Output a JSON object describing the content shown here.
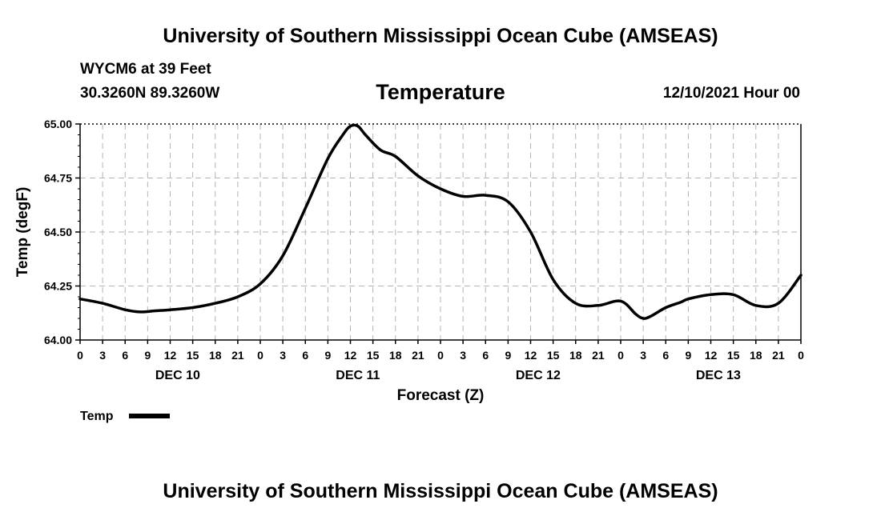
{
  "header": {
    "title": "University of Southern Mississippi Ocean Cube (AMSEAS)",
    "station": "WYCM6 at 39 Feet",
    "coords": "30.3260N  89.3260W",
    "variable": "Temperature",
    "date": "12/10/2021 Hour 00"
  },
  "footer": {
    "title": "University of Southern Mississippi Ocean Cube (AMSEAS)"
  },
  "chart_data": {
    "type": "line",
    "title": "Temperature",
    "xlabel": "Forecast (Z)",
    "ylabel": "Temp (degF)",
    "xlim": [
      0,
      96
    ],
    "ylim": [
      64.0,
      65.0
    ],
    "yticks": [
      "64.00",
      "64.25",
      "64.50",
      "64.75",
      "65.00"
    ],
    "xtick_labels": [
      "0",
      "3",
      "6",
      "9",
      "12",
      "15",
      "18",
      "21",
      "0",
      "3",
      "6",
      "9",
      "12",
      "15",
      "18",
      "21",
      "0",
      "3",
      "6",
      "9",
      "12",
      "15",
      "18",
      "21",
      "0",
      "3",
      "6",
      "9",
      "12",
      "15",
      "18",
      "21",
      "0"
    ],
    "day_labels": [
      "DEC 10",
      "DEC 11",
      "DEC 12",
      "DEC 13"
    ],
    "grid": true,
    "legend": "bottom-left",
    "series": [
      {
        "name": "Temp",
        "x": [
          0,
          3,
          6,
          8,
          10,
          12,
          15,
          18,
          21,
          24,
          27,
          30,
          33,
          35,
          36,
          37,
          38,
          40,
          42,
          45,
          48,
          51,
          54,
          57,
          60,
          63,
          66,
          69,
          72,
          74,
          75,
          76,
          78,
          80,
          81,
          84,
          87,
          90,
          93,
          96
        ],
        "y": [
          64.19,
          64.17,
          64.14,
          64.13,
          64.135,
          64.14,
          64.15,
          64.17,
          64.2,
          64.26,
          64.39,
          64.61,
          64.84,
          64.95,
          64.99,
          64.99,
          64.95,
          64.88,
          64.85,
          64.76,
          64.7,
          64.665,
          64.67,
          64.64,
          64.5,
          64.28,
          64.17,
          64.16,
          64.18,
          64.12,
          64.1,
          64.11,
          64.15,
          64.175,
          64.19,
          64.21,
          64.21,
          64.16,
          64.17,
          64.3
        ]
      }
    ]
  }
}
